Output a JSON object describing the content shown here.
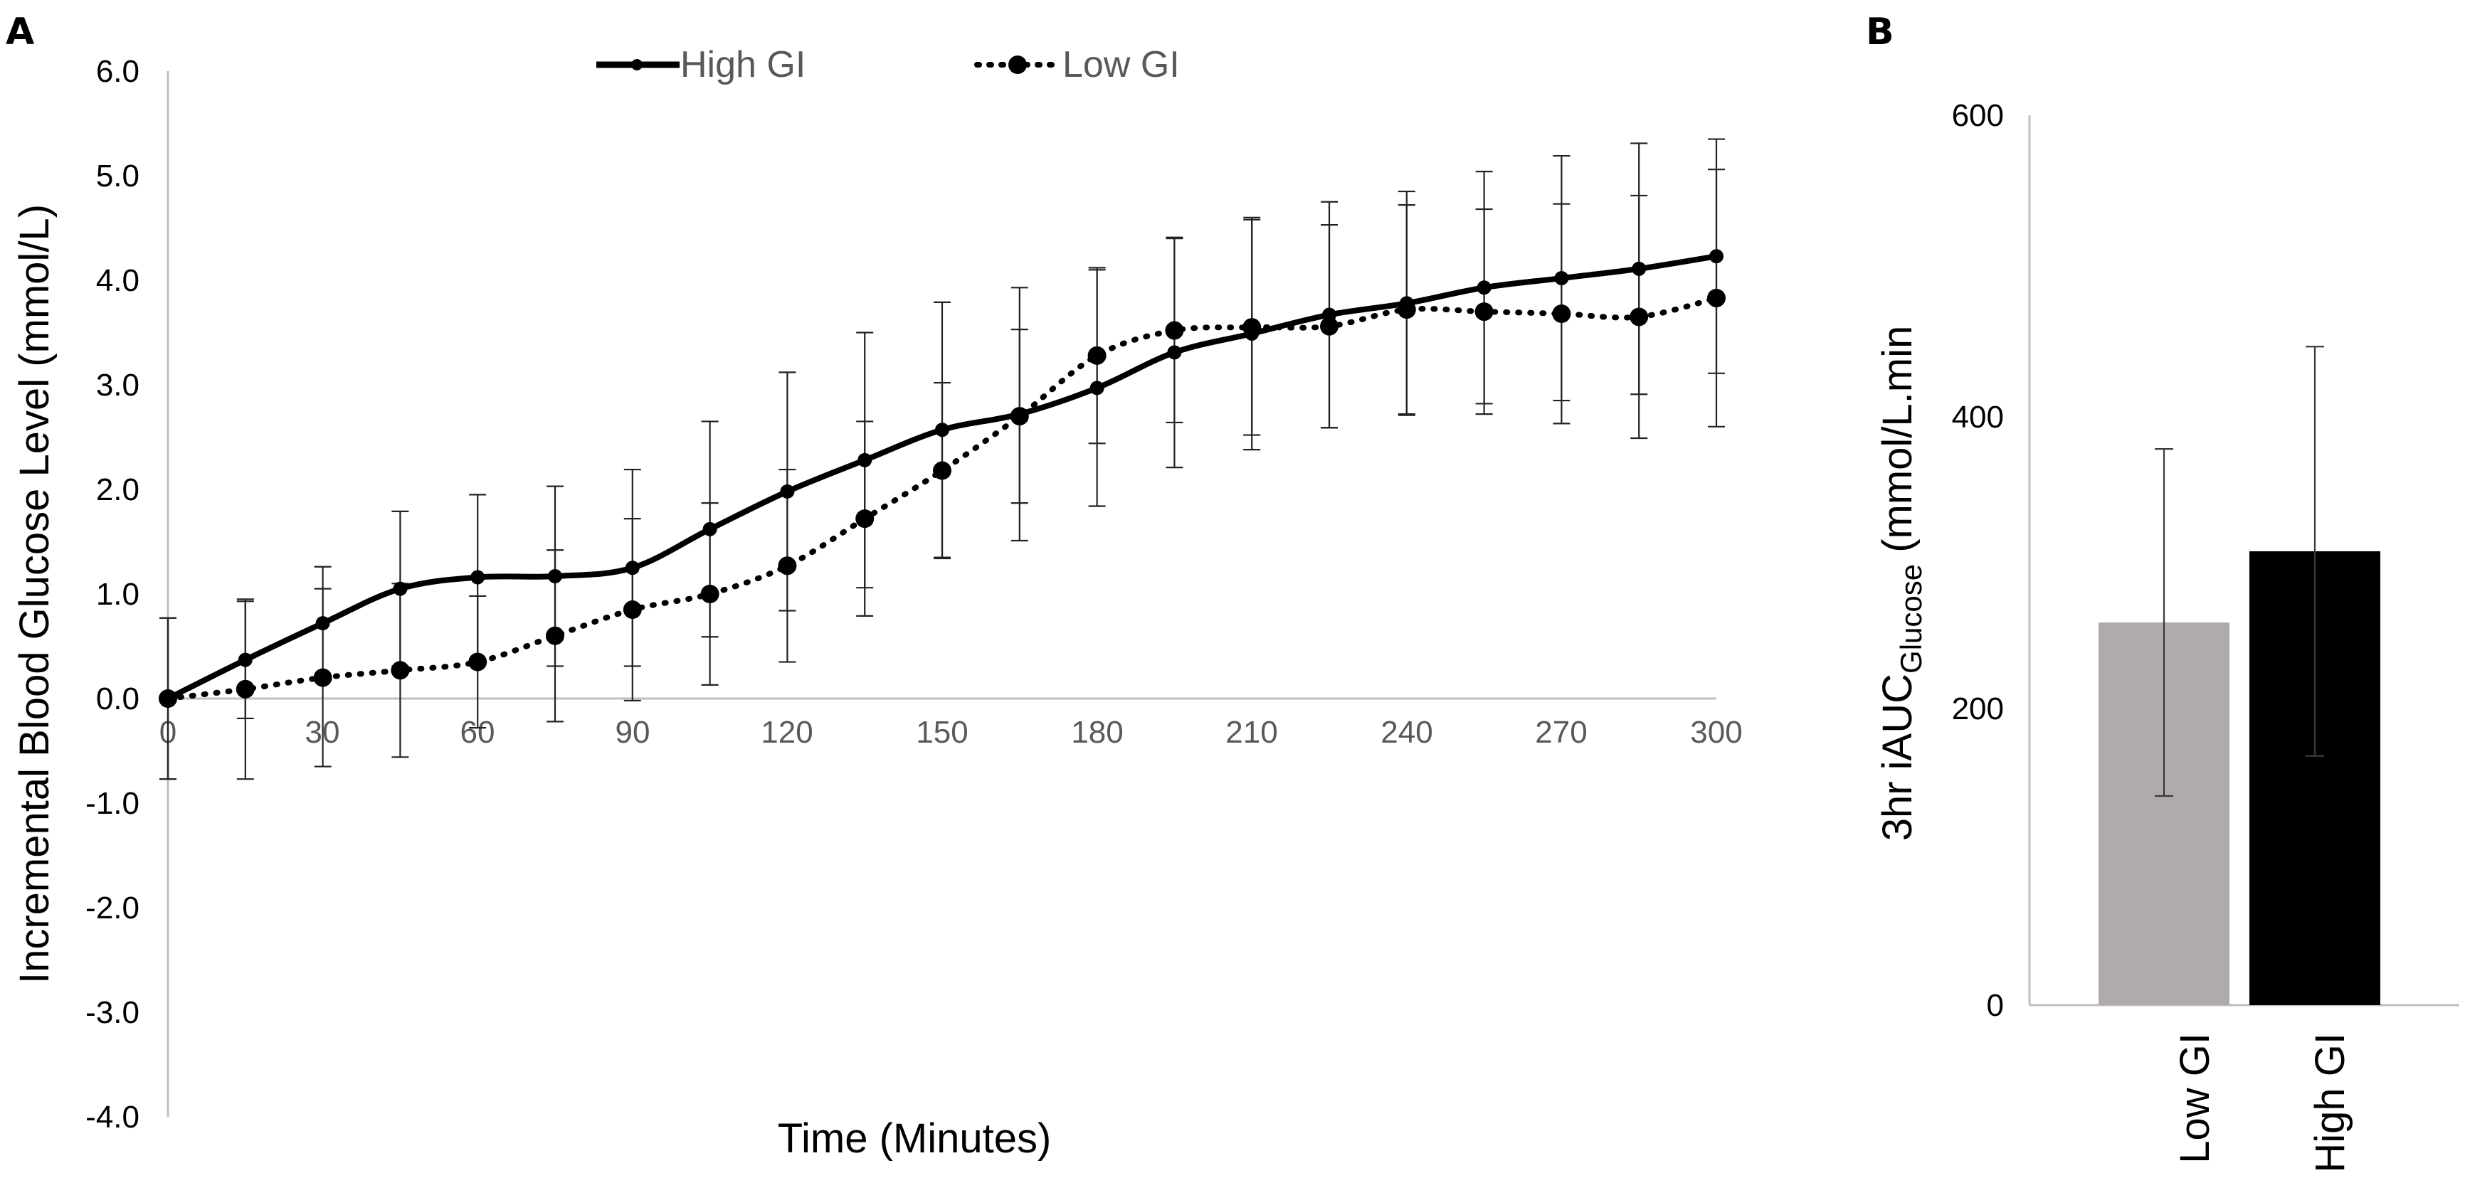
{
  "chart_data": [
    {
      "panel": "A",
      "type": "line",
      "xlabel": "Time (Minutes)",
      "ylabel": "Incremental Blood Glucose Level (mmol/L)",
      "xlim": [
        0,
        300
      ],
      "ylim": [
        -4.0,
        6.0
      ],
      "x_ticks": [
        "0",
        "30",
        "60",
        "90",
        "120",
        "150",
        "180",
        "210",
        "240",
        "270",
        "300"
      ],
      "y_ticks": [
        "6.0",
        "5.0",
        "4.0",
        "3.0",
        "2.0",
        "1.0",
        "0.0",
        "-1.0",
        "-2.0",
        "-3.0",
        "-4.0"
      ],
      "legend_position": "top-center",
      "x": [
        0,
        15,
        30,
        45,
        60,
        75,
        90,
        105,
        120,
        135,
        150,
        165,
        180,
        195,
        210,
        225,
        240,
        255,
        270,
        285,
        300
      ],
      "series": [
        {
          "name": "High GI",
          "style": "solid",
          "color": "#000000",
          "values": [
            0.0,
            0.37,
            0.72,
            1.05,
            1.16,
            1.17,
            1.25,
            1.62,
            1.98,
            2.28,
            2.57,
            2.72,
            2.97,
            3.31,
            3.49,
            3.67,
            3.78,
            3.93,
            4.02,
            4.11,
            4.23
          ],
          "error": [
            0.77,
            0.56,
            0.54,
            0.74,
            0.79,
            0.86,
            0.94,
            1.03,
            1.14,
            1.22,
            1.22,
            1.21,
            1.13,
            1.1,
            1.11,
            1.08,
            1.07,
            1.11,
            1.17,
            1.2,
            1.12
          ]
        },
        {
          "name": "Low GI",
          "style": "dotted",
          "color": "#000000",
          "values": [
            0.0,
            0.09,
            0.2,
            0.27,
            0.35,
            0.6,
            0.85,
            1.0,
            1.27,
            1.72,
            2.18,
            2.7,
            3.28,
            3.52,
            3.55,
            3.56,
            3.72,
            3.7,
            3.68,
            3.65,
            3.83
          ],
          "error": [
            0.77,
            0.86,
            0.85,
            0.83,
            0.63,
            0.82,
            0.87,
            0.87,
            0.92,
            0.93,
            0.84,
            0.83,
            0.84,
            0.88,
            1.03,
            0.97,
            1.0,
            0.98,
            1.05,
            1.16,
            1.23
          ]
        }
      ]
    },
    {
      "panel": "B",
      "type": "bar",
      "ylabel_main": "3hr iAUC",
      "ylabel_sub": "Glucose",
      "ylabel_tail": " (mmol/L.min",
      "ylim": [
        0,
        600
      ],
      "y_ticks": [
        "600",
        "400",
        "200",
        "0"
      ],
      "categories": [
        "Low GI",
        "High GI"
      ],
      "values": [
        258,
        306
      ],
      "error": [
        117,
        138
      ],
      "colors": [
        "#afabab",
        "#000000"
      ]
    }
  ]
}
